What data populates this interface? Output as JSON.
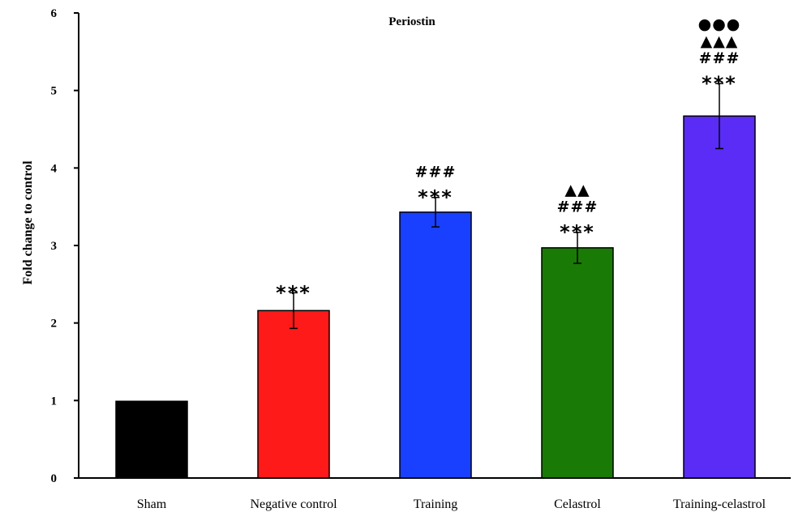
{
  "chart_data": {
    "type": "bar",
    "title": "Periostin",
    "xlabel": "",
    "ylabel": "Fold change to control",
    "ylim": [
      0,
      6
    ],
    "yticks": [
      "0",
      "1",
      "2",
      "3",
      "4",
      "5",
      "6"
    ],
    "grid": false,
    "categories": [
      "Sham",
      "Negative control",
      "Training",
      "Celastrol",
      "Training-celastrol"
    ],
    "values": [
      0.99,
      2.16,
      3.43,
      2.97,
      4.67
    ],
    "errors": [
      0,
      0.23,
      0.19,
      0.2,
      0.42
    ],
    "colors": [
      "#000000",
      "#ff1a1a",
      "#1a40ff",
      "#1a7a06",
      "#5a2cf5"
    ],
    "annotations": [
      [],
      [
        "***"
      ],
      [
        "***",
        "###"
      ],
      [
        "***",
        "###",
        "▲▲"
      ],
      [
        "***",
        "###",
        "▲▲▲",
        "●●●"
      ]
    ]
  }
}
